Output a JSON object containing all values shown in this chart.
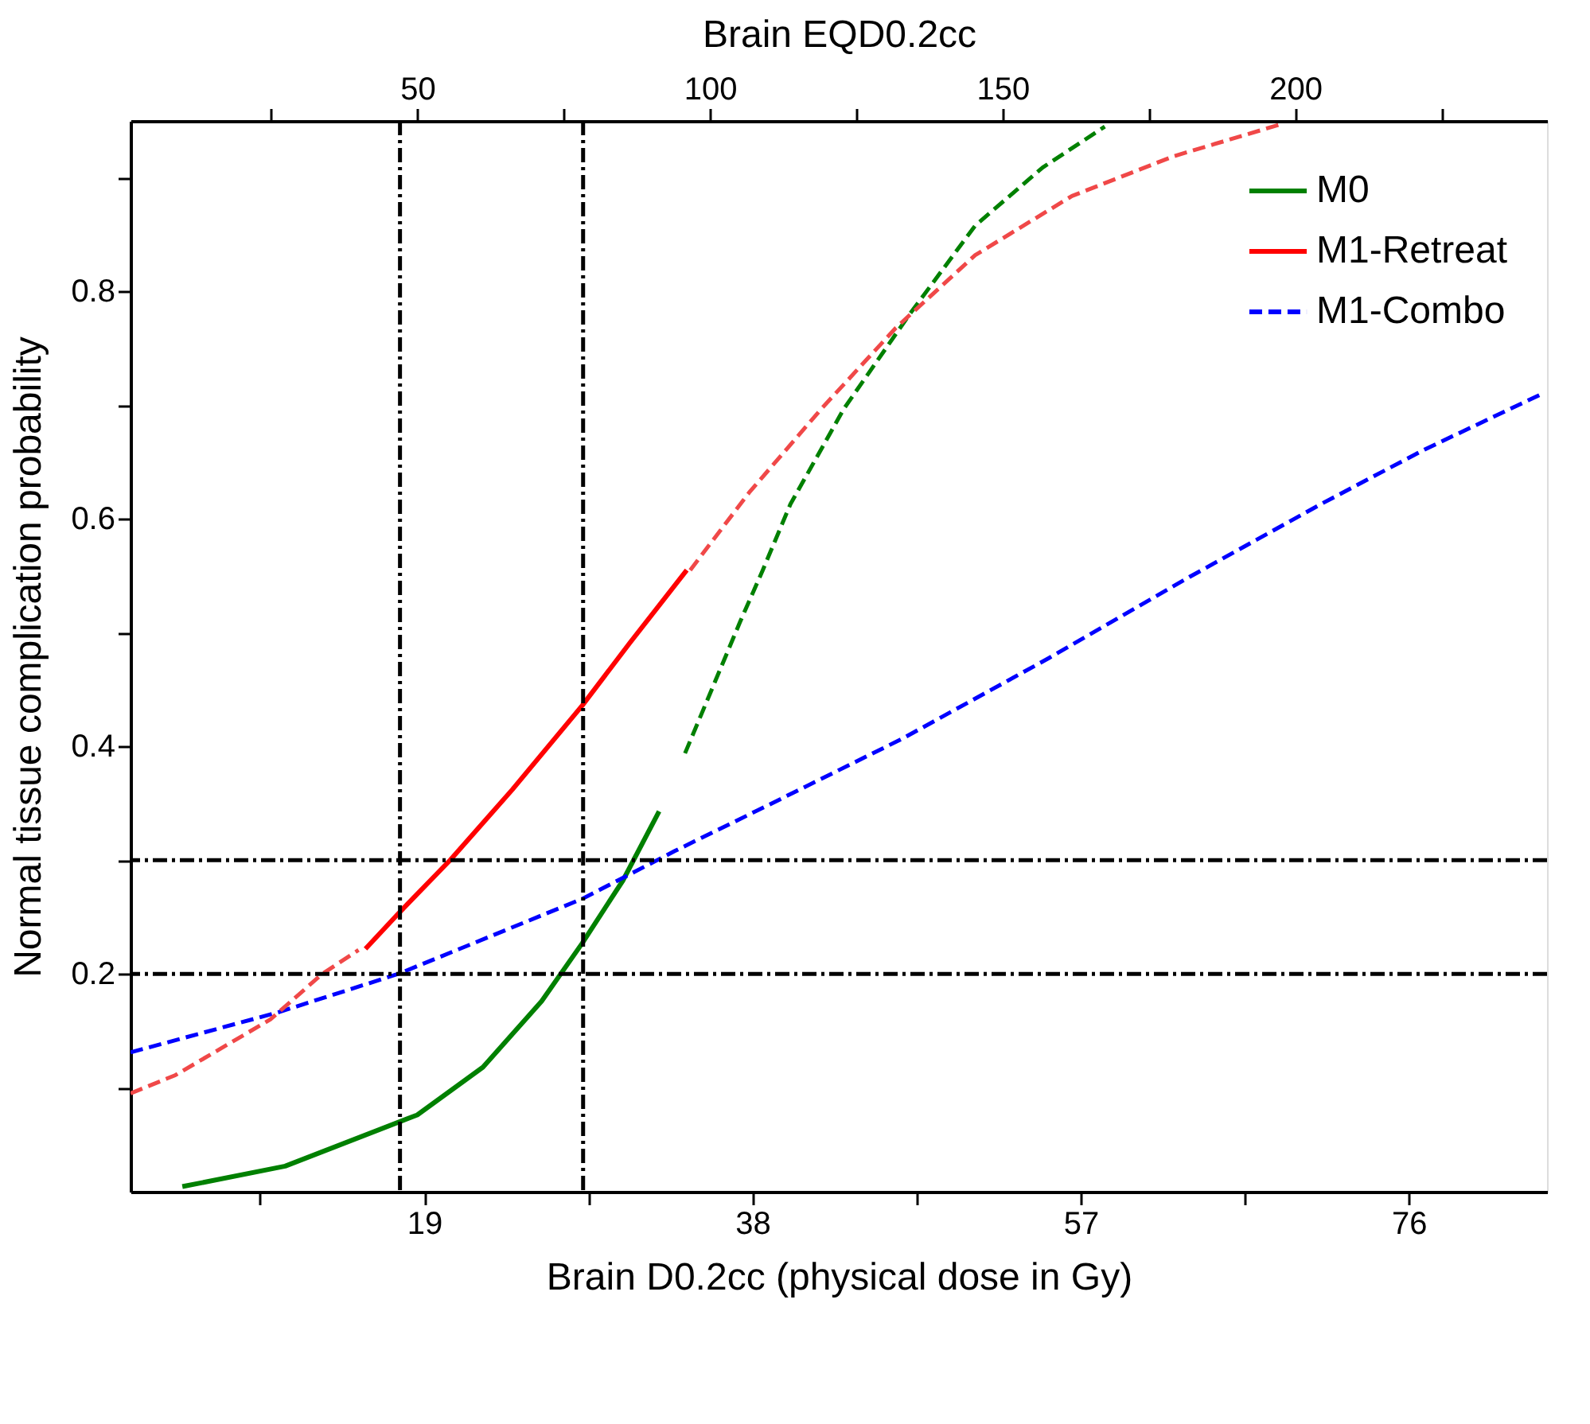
{
  "chart_data": {
    "type": "line",
    "xlabel": "Brain D0.2cc (physical dose in Gy)",
    "ylabel": "Normal tissue complication probability",
    "x2label": "Brain EQD0.2cc",
    "xlim": [
      2,
      84
    ],
    "ylim": [
      0.0085,
      0.95
    ],
    "x2lim": [
      1,
      243
    ],
    "xticks": [
      {
        "value": 9.5,
        "label": null
      },
      19,
      {
        "value": 28.5,
        "label": null
      },
      38,
      {
        "value": 47.5,
        "label": null
      },
      57,
      {
        "value": 66.5,
        "label": null
      },
      76
    ],
    "x2ticks": [
      {
        "value": 25,
        "label": null
      },
      50,
      {
        "value": 75,
        "label": null
      },
      100,
      {
        "value": 125,
        "label": null
      },
      150,
      {
        "value": 175,
        "label": null
      },
      200,
      {
        "value": 225,
        "label": null
      }
    ],
    "yticks": [
      {
        "value": 0.1,
        "label": null
      },
      0.2,
      {
        "value": 0.3,
        "label": null
      },
      0.4,
      {
        "value": 0.5,
        "label": null
      },
      0.6,
      {
        "value": 0.7,
        "label": null
      },
      0.8,
      {
        "value": 0.9,
        "label": null
      }
    ],
    "grid": false,
    "legend": "top right",
    "marker": "none",
    "series": [
      {
        "name": "M0",
        "color": "#008000",
        "line_style": "solid",
        "x": [
          5.0,
          10.95,
          18.6,
          22.4,
          25.8,
          28.15,
          30.5,
          32.6
        ],
        "values": [
          0.013,
          0.031,
          0.076,
          0.118,
          0.176,
          0.227,
          0.282,
          0.343
        ]
      },
      {
        "name": "M1-Retreat",
        "color": "#ff0000",
        "line_style": "solid",
        "x": [
          15.6,
          17.5,
          20.5,
          24.1,
          28.15,
          30.9,
          34.2
        ],
        "values": [
          0.222,
          0.253,
          0.3,
          0.362,
          0.436,
          0.491,
          0.555
        ]
      },
      {
        "name": "M1-Combo",
        "color": "#0000ff",
        "line_style": "dashed",
        "x": [
          2.0,
          10.5,
          17.5,
          28.15,
          33.5,
          39.0,
          46.7,
          55.2,
          63.3,
          70.9,
          76.9,
          83.7
        ],
        "values": [
          0.131,
          0.166,
          0.2,
          0.266,
          0.308,
          0.349,
          0.407,
          0.478,
          0.549,
          0.613,
          0.661,
          0.71
        ]
      },
      {
        "color": "#008000",
        "line_style": "dashed",
        "x": [
          34.1,
          37.3,
          38.6,
          40.2,
          43.3,
          47.1,
          50.9,
          54.8,
          58.4
        ],
        "values": [
          0.394,
          0.51,
          0.555,
          0.613,
          0.697,
          0.78,
          0.858,
          0.909,
          0.945
        ]
      },
      {
        "color": "#f04848",
        "line_style": "dashed",
        "x": [
          2.0,
          4.6,
          10.1,
          13.1,
          15.2
        ],
        "values": [
          0.095,
          0.111,
          0.16,
          0.2,
          0.221
        ]
      },
      {
        "color": "#f04848",
        "line_style": "dashed",
        "x": [
          34.4,
          37.8,
          42.0,
          46.3,
          50.9,
          56.5,
          62.4,
          68.8
        ],
        "values": [
          0.555,
          0.623,
          0.697,
          0.768,
          0.832,
          0.884,
          0.919,
          0.948
        ]
      }
    ],
    "ref_lines": [
      {
        "axis": "x",
        "value": 17.6,
        "color": "#000000",
        "line_style": "dashdot"
      },
      {
        "axis": "x",
        "value": 28.2,
        "color": "#000000",
        "line_style": "dashdot"
      },
      {
        "axis": "y",
        "value": 0.3,
        "color": "#000000",
        "line_style": "dashdot"
      },
      {
        "axis": "y",
        "value": 0.2,
        "color": "#000000",
        "line_style": "dashdot"
      }
    ]
  }
}
